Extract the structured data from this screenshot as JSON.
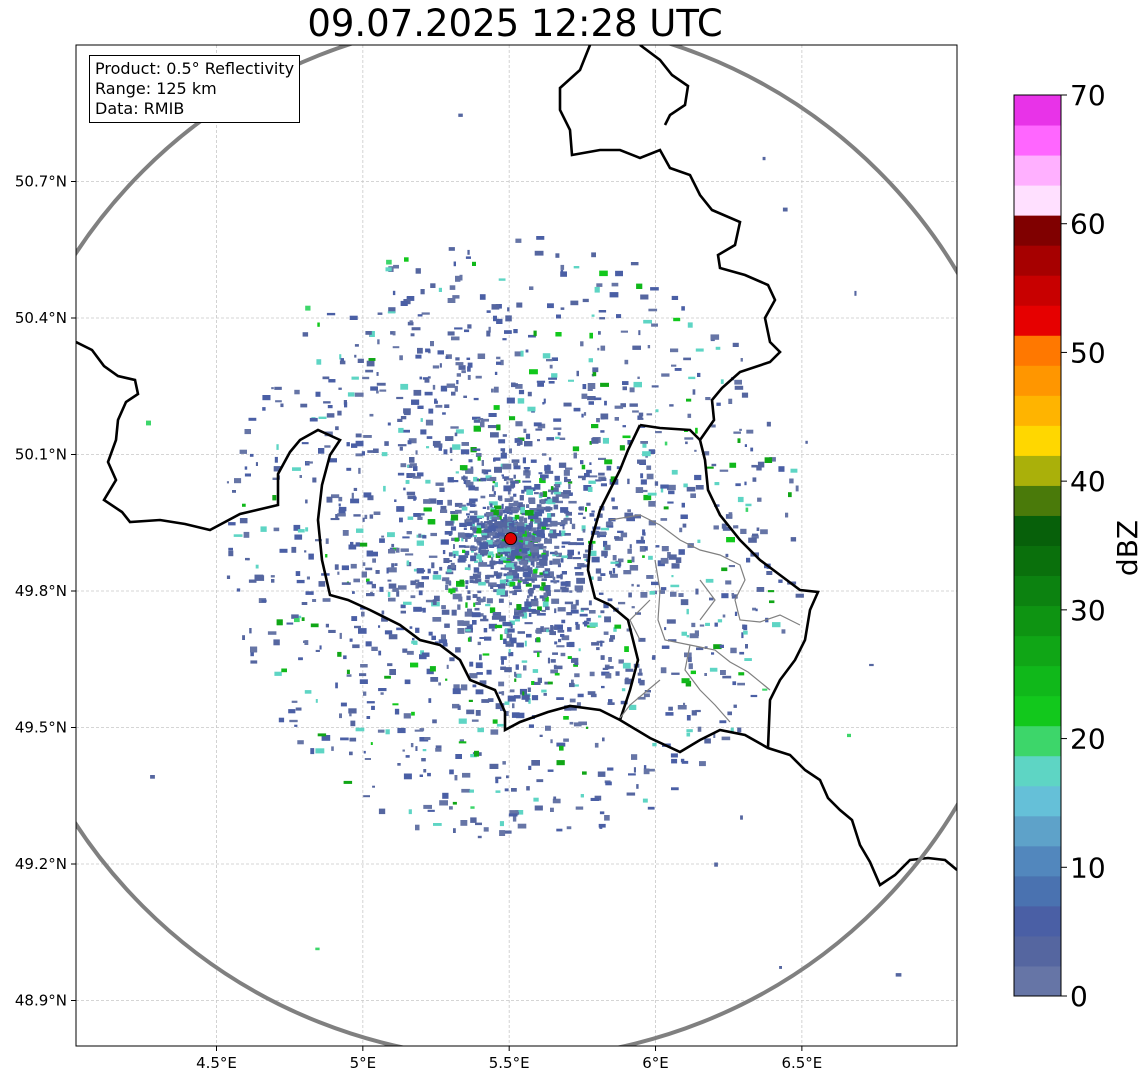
{
  "title": "09.07.2025 12:28 UTC",
  "info_box": {
    "product": "Product: 0.5° Reflectivity",
    "range": "Range: 125 km",
    "data": "Data: RMIB"
  },
  "map": {
    "lon_range": [
      4.02,
      7.03
    ],
    "lat_range": [
      48.8,
      51.0
    ],
    "x_ticks": [
      {
        "value": 4.5,
        "label": "4.5°E"
      },
      {
        "value": 5.0,
        "label": "5°E"
      },
      {
        "value": 5.5,
        "label": "5.5°E"
      },
      {
        "value": 6.0,
        "label": "6°E"
      },
      {
        "value": 6.5,
        "label": "6.5°E"
      }
    ],
    "y_ticks": [
      {
        "value": 50.7,
        "label": "50.7°N"
      },
      {
        "value": 50.4,
        "label": "50.4°N"
      },
      {
        "value": 50.1,
        "label": "50.1°N"
      },
      {
        "value": 49.8,
        "label": "49.8°N"
      },
      {
        "value": 49.5,
        "label": "49.5°N"
      },
      {
        "value": 49.2,
        "label": "49.2°N"
      },
      {
        "value": 48.9,
        "label": "48.9°N"
      }
    ],
    "radar_site": {
      "lon": 5.505,
      "lat": 49.915,
      "color": "#e00000"
    },
    "range_km": 125,
    "range_ring_color": "#808080",
    "grid": true,
    "border_color": "#000000",
    "admin_border_color": "#808080"
  },
  "colorbar": {
    "label": "dBZ",
    "min": 0,
    "max": 70,
    "step": 2.5,
    "colors": [
      "#6675a6",
      "#5566a0",
      "#4a5fa5",
      "#4a72b0",
      "#5287bd",
      "#5ea2c9",
      "#65c0d8",
      "#5ed5c4",
      "#3dd66a",
      "#12c81c",
      "#10b81a",
      "#10a616",
      "#0e9412",
      "#0c8210",
      "#0a700c",
      "#07600a",
      "#4a7a0a",
      "#aab00a",
      "#ffd700",
      "#ffb400",
      "#ff9600",
      "#ff7800",
      "#e60000",
      "#c80000",
      "#a60000",
      "#800000",
      "#ffe0ff",
      "#ffb0ff",
      "#ff66ff",
      "#e833e8"
    ],
    "ticks": [
      {
        "value": 0,
        "label": "0"
      },
      {
        "value": 10,
        "label": "10"
      },
      {
        "value": 20,
        "label": "20"
      },
      {
        "value": 30,
        "label": "30"
      },
      {
        "value": 40,
        "label": "40"
      },
      {
        "value": 50,
        "label": "50"
      },
      {
        "value": 60,
        "label": "60"
      },
      {
        "value": 70,
        "label": "70"
      }
    ]
  }
}
